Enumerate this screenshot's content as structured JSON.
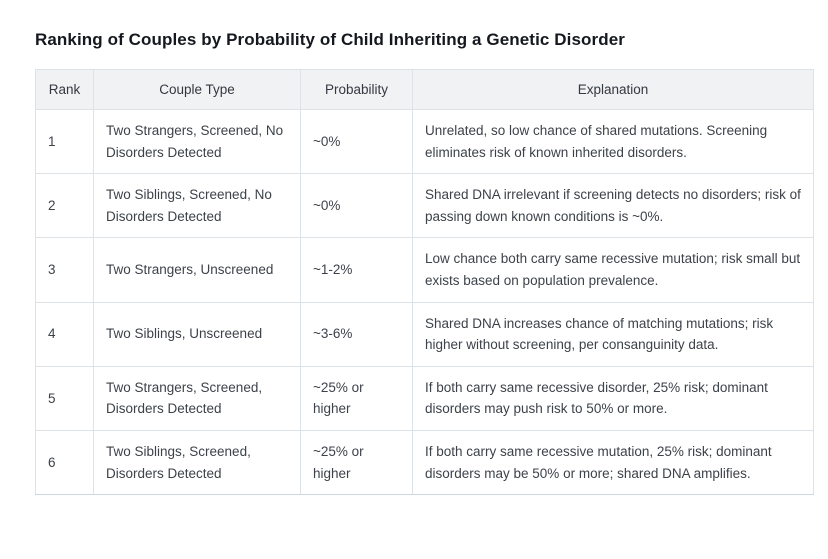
{
  "page": {
    "title": "Ranking of Couples by Probability of Child Inheriting a Genetic Disorder"
  },
  "table": {
    "columns": [
      "Rank",
      "Couple Type",
      "Probability",
      "Explanation"
    ],
    "rows": [
      {
        "rank": "1",
        "couple_type": "Two Strangers, Screened, No Disorders Detected",
        "probability": "~0%",
        "explanation": "Unrelated, so low chance of shared mutations. Screening eliminates risk of known inherited disorders."
      },
      {
        "rank": "2",
        "couple_type": "Two Siblings, Screened, No Disorders Detected",
        "probability": "~0%",
        "explanation": "Shared DNA irrelevant if screening detects no disorders; risk of passing down known conditions is ~0%."
      },
      {
        "rank": "3",
        "couple_type": "Two Strangers, Unscreened",
        "probability": "~1-2%",
        "explanation": "Low chance both carry same recessive mutation; risk small but exists based on population prevalence."
      },
      {
        "rank": "4",
        "couple_type": "Two Siblings, Unscreened",
        "probability": "~3-6%",
        "explanation": "Shared DNA increases chance of matching mutations; risk higher without screening, per consanguinity data."
      },
      {
        "rank": "5",
        "couple_type": "Two Strangers, Screened, Disorders Detected",
        "probability": "~25% or higher",
        "explanation": "If both carry same recessive disorder, 25% risk; dominant disorders may push risk to 50% or more."
      },
      {
        "rank": "6",
        "couple_type": "Two Siblings, Screened, Disorders Detected",
        "probability": "~25% or higher",
        "explanation": "If both carry same recessive mutation, 25% risk; dominant disorders may be 50% or more; shared DNA amplifies."
      }
    ],
    "colors": {
      "header_bg": "#f1f2f4",
      "border": "#dde2e6",
      "bottom_border": "#ccd6dc",
      "text": "#3d4249",
      "title": "#15181e"
    }
  }
}
